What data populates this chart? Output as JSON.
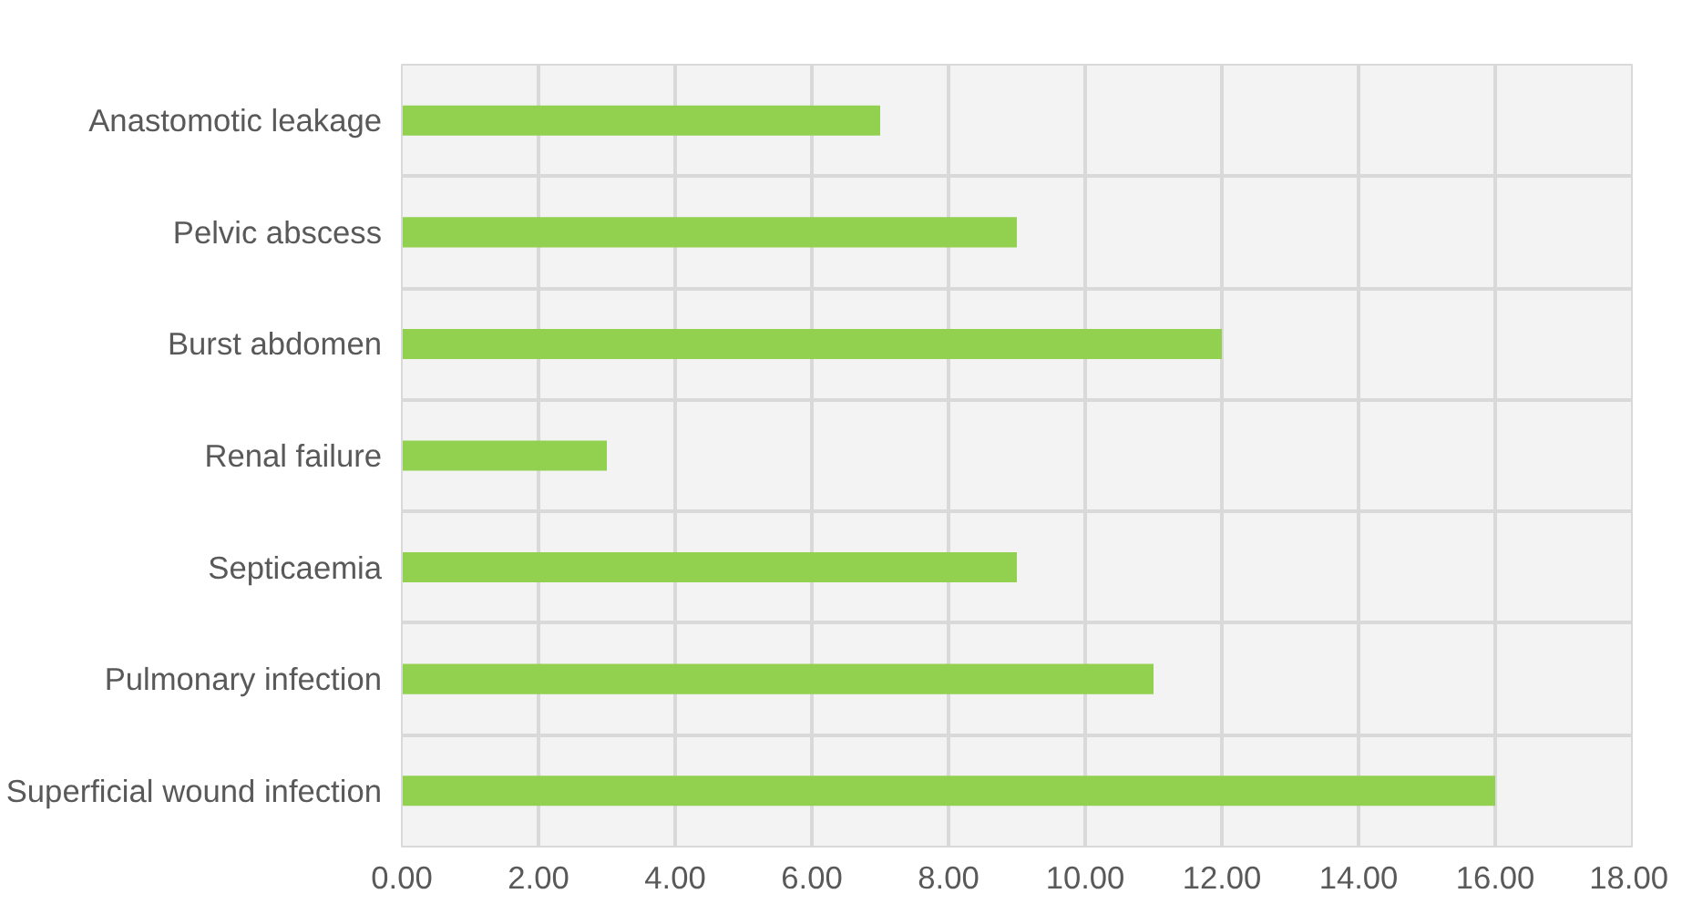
{
  "chart_data": {
    "type": "bar",
    "orientation": "horizontal",
    "categories": [
      "Anastomotic leakage",
      "Pelvic abscess",
      "Burst abdomen",
      "Renal failure",
      "Septicaemia",
      "Pulmonary infection",
      "Superficial wound infection"
    ],
    "values": [
      7,
      9,
      12,
      3,
      9,
      11,
      16
    ],
    "color": "#92d050",
    "xlim": [
      0,
      18
    ],
    "xticks": [
      {
        "value": 0,
        "label": "0.00"
      },
      {
        "value": 2,
        "label": "2.00"
      },
      {
        "value": 4,
        "label": "4.00"
      },
      {
        "value": 6,
        "label": "6.00"
      },
      {
        "value": 8,
        "label": "8.00"
      },
      {
        "value": 10,
        "label": "10.00"
      },
      {
        "value": 12,
        "label": "12.00"
      },
      {
        "value": 14,
        "label": "14.00"
      },
      {
        "value": 16,
        "label": "16.00"
      },
      {
        "value": 18,
        "label": "18.00"
      }
    ],
    "grid": true
  }
}
